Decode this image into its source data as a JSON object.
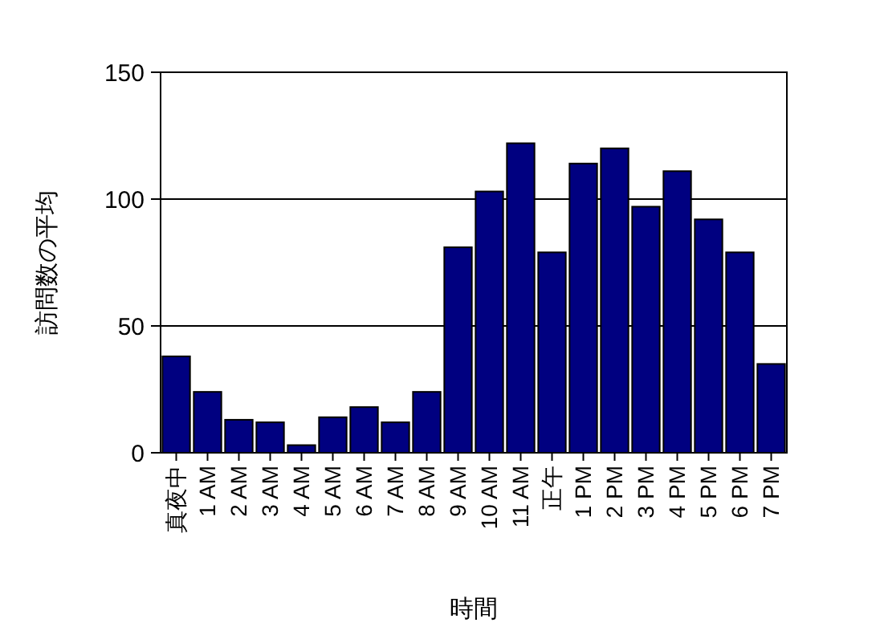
{
  "chart_data": {
    "type": "bar",
    "xlabel": "時間",
    "ylabel": "訪問数の平均",
    "categories": [
      "真夜中",
      "1 AM",
      "2 AM",
      "3 AM",
      "4 AM",
      "5 AM",
      "6 AM",
      "7 AM",
      "8 AM",
      "9 AM",
      "10 AM",
      "11 AM",
      "正午",
      "1 PM",
      "2 PM",
      "3 PM",
      "4 PM",
      "5 PM",
      "6 PM",
      "7 PM"
    ],
    "values": [
      38,
      24,
      13,
      12,
      3,
      14,
      18,
      12,
      24,
      81,
      103,
      122,
      79,
      114,
      120,
      97,
      111,
      92,
      79,
      35
    ],
    "color": "#000080",
    "ylim": [
      0,
      150
    ],
    "yticks": [
      0,
      50,
      100,
      150
    ],
    "grid": "y"
  }
}
